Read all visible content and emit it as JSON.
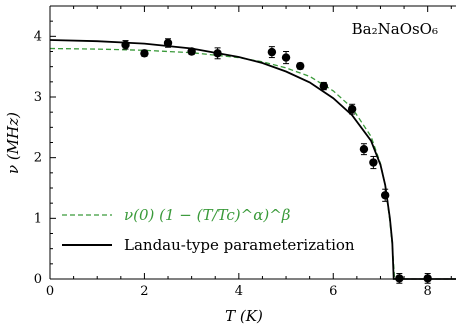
{
  "chart_data": {
    "type": "scatter",
    "annotation": "Ba₂NaOsO₆",
    "xlabel": "T (K)",
    "ylabel": "ν (MHz)",
    "xlim": [
      0,
      8.6
    ],
    "ylim": [
      0,
      4.5
    ],
    "xticks": [
      "0",
      "2",
      "4",
      "6",
      "8"
    ],
    "yticks": [
      "0",
      "1",
      "2",
      "3",
      "4"
    ],
    "legend_position": "lower-left",
    "series": [
      {
        "name": "ν(0) (1 − (T/Tc)^α)^β",
        "kind": "dashed-line",
        "color": "#3a9a3a",
        "x": [
          0,
          1,
          2,
          3,
          4,
          4.5,
          5,
          5.5,
          6,
          6.4,
          6.8,
          7.0,
          7.1,
          7.2,
          7.25,
          7.3,
          8.6
        ],
        "y": [
          3.8,
          3.79,
          3.77,
          3.73,
          3.65,
          3.58,
          3.48,
          3.34,
          3.1,
          2.82,
          2.35,
          1.9,
          1.55,
          0.95,
          0.55,
          0,
          0
        ]
      },
      {
        "name": "Landau-type parameterization",
        "kind": "solid-line",
        "color": "#000000",
        "x": [
          0,
          1,
          2,
          3,
          4,
          4.5,
          5,
          5.5,
          6,
          6.4,
          6.8,
          7.0,
          7.1,
          7.2,
          7.25,
          7.28,
          8.6
        ],
        "y": [
          3.94,
          3.92,
          3.88,
          3.8,
          3.66,
          3.56,
          3.42,
          3.24,
          2.98,
          2.7,
          2.28,
          1.88,
          1.55,
          1.0,
          0.6,
          0,
          0
        ]
      },
      {
        "name": "",
        "kind": "points",
        "color": "#000000",
        "x": [
          1.6,
          2.0,
          2.5,
          3.0,
          3.55,
          4.7,
          5.0,
          5.3,
          5.8,
          6.4,
          6.65,
          6.85,
          7.1,
          7.4,
          8.0
        ],
        "y": [
          3.86,
          3.72,
          3.89,
          3.75,
          3.72,
          3.74,
          3.65,
          3.51,
          3.18,
          2.8,
          2.14,
          1.92,
          1.38,
          0.01,
          0.01
        ],
        "yerr": [
          0.07,
          0.05,
          0.07,
          0.05,
          0.09,
          0.09,
          0.1,
          0.05,
          0.06,
          0.08,
          0.09,
          0.1,
          0.1,
          0.08,
          0.08
        ]
      }
    ]
  }
}
